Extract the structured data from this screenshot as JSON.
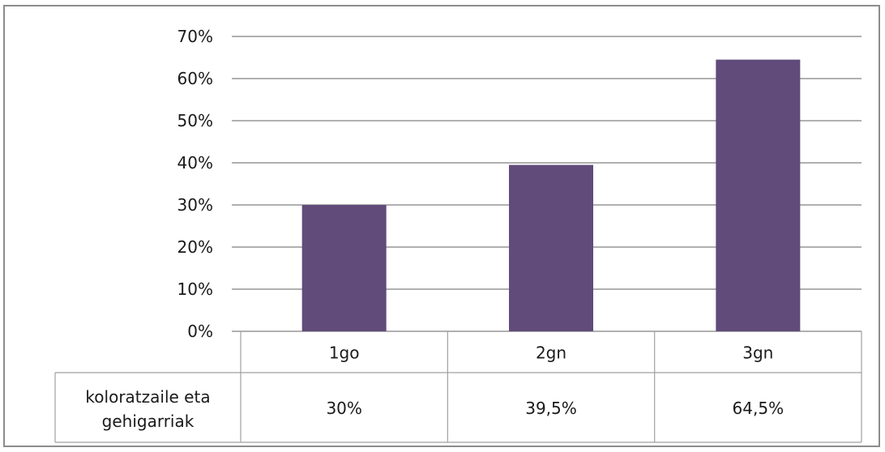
{
  "chart_data": {
    "type": "bar",
    "title": "",
    "xlabel": "",
    "ylabel": "",
    "categories": [
      "1go",
      "2gn",
      "3gn"
    ],
    "series": [
      {
        "name": "koloratzaile eta gehigarriak",
        "name_lines": [
          "koloratzaile eta",
          "gehigarriak"
        ],
        "values": [
          30,
          39.5,
          64.5
        ],
        "value_labels": [
          "30%",
          "39,5%",
          "64,5%"
        ],
        "color": "#614b7a"
      }
    ],
    "ylim": [
      0,
      70
    ],
    "yticks": [
      0,
      10,
      20,
      30,
      40,
      50,
      60,
      70
    ],
    "ytick_labels": [
      "0%",
      "10%",
      "20%",
      "30%",
      "40%",
      "50%",
      "60%",
      "70%"
    ],
    "grid": true,
    "data_table": true,
    "gridline_color": "#808080"
  }
}
